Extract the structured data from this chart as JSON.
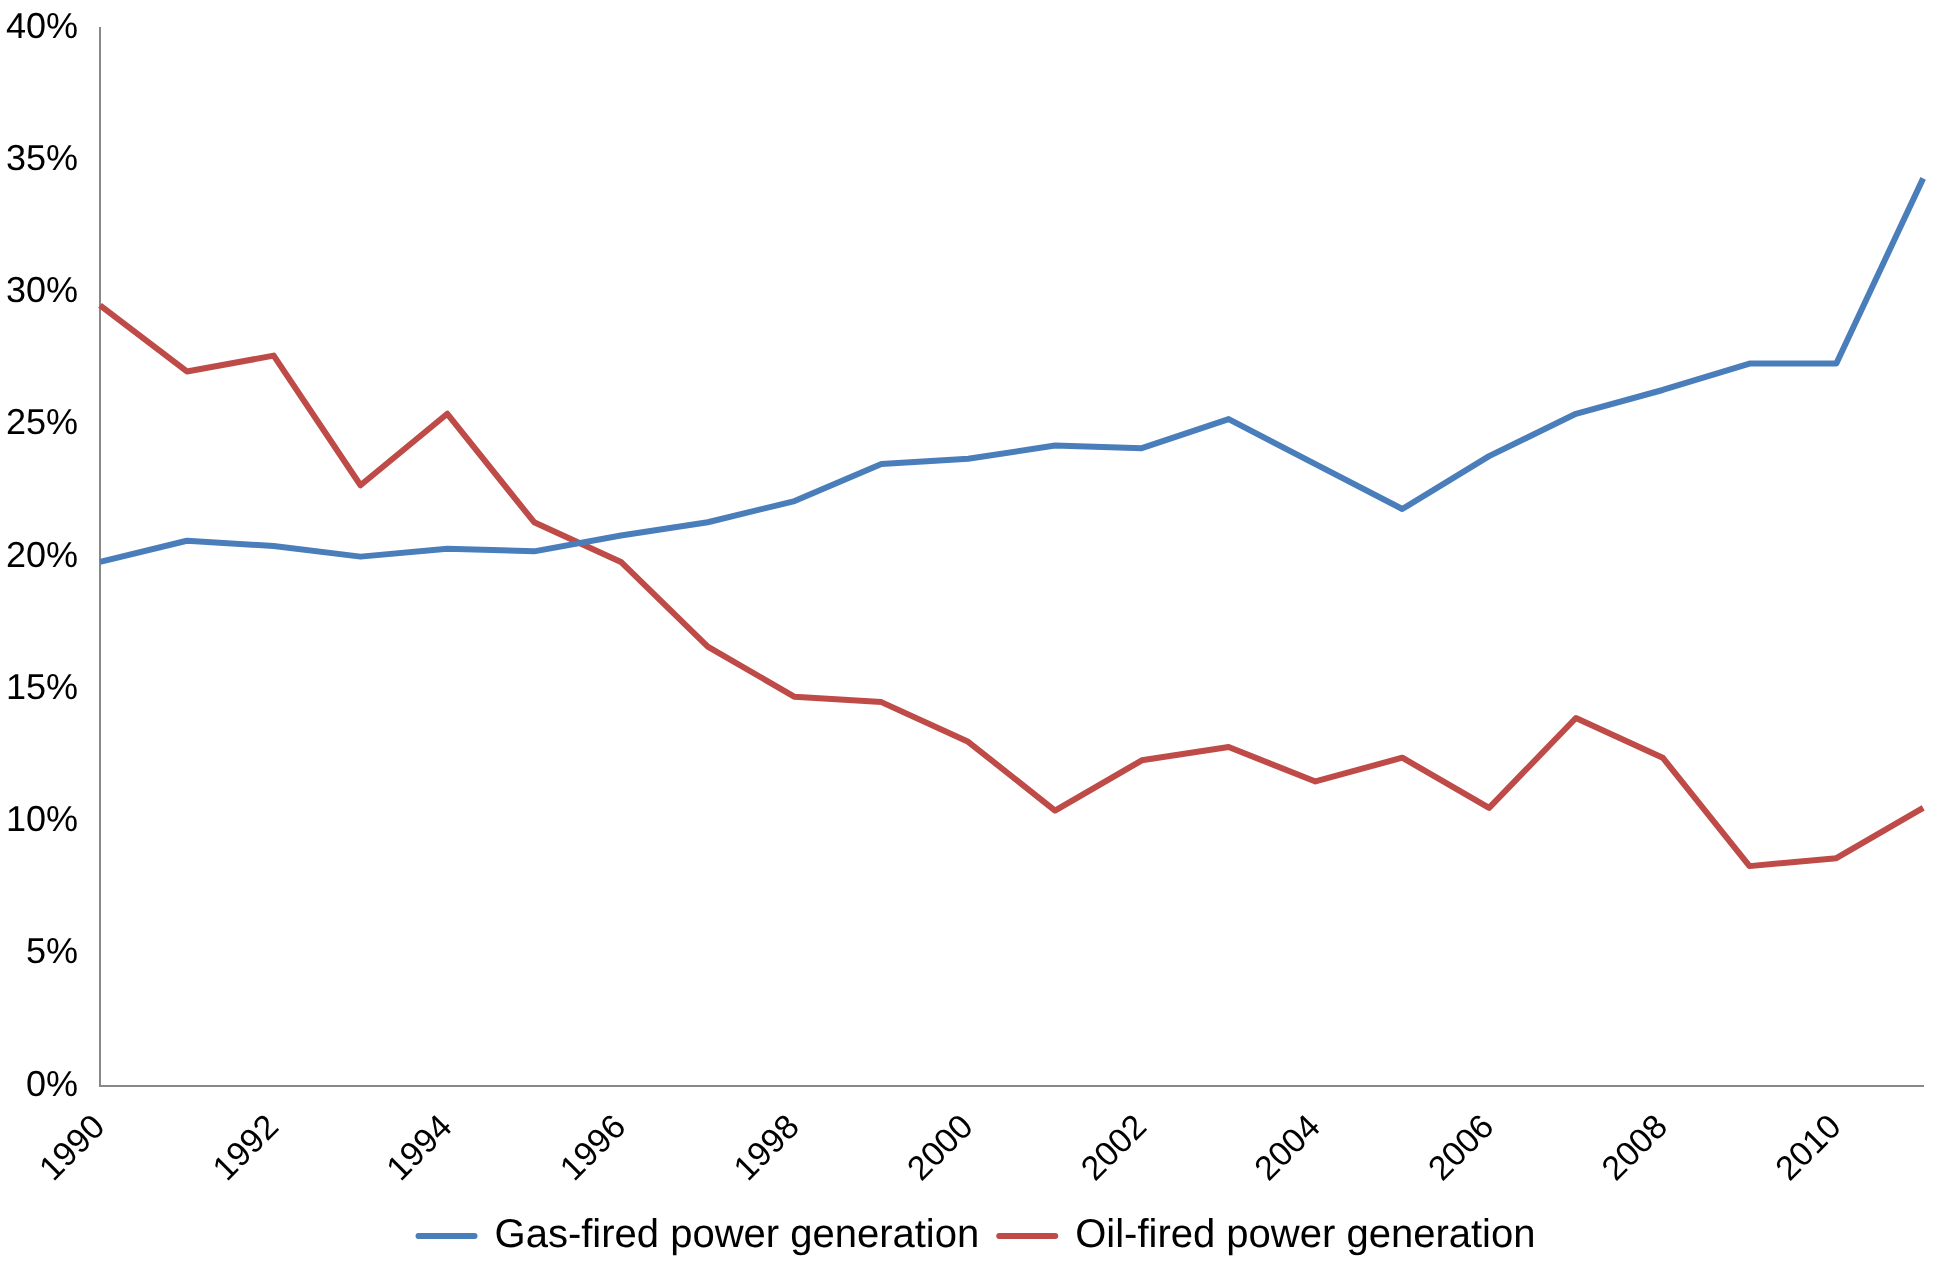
{
  "chart_data": {
    "type": "line",
    "categories": [
      "1990",
      null,
      "1992",
      null,
      "1994",
      null,
      "1996",
      null,
      "1998",
      null,
      "2000",
      null,
      "2002",
      null,
      "2004",
      null,
      "2006",
      null,
      "2008",
      null,
      "2010",
      null
    ],
    "series": [
      {
        "name": "Gas-fired power generation",
        "color": "#4a7ebb",
        "values": [
          19.8,
          20.6,
          20.4,
          20.0,
          20.3,
          20.2,
          20.8,
          21.3,
          22.1,
          23.5,
          23.7,
          24.2,
          24.1,
          25.2,
          23.5,
          21.8,
          23.8,
          25.4,
          26.3,
          27.3,
          27.3,
          34.3
        ]
      },
      {
        "name": "Oil-fired power generation",
        "color": "#be4b48",
        "values": [
          29.5,
          27.0,
          27.6,
          22.7,
          25.4,
          21.3,
          19.8,
          16.6,
          14.7,
          14.5,
          13.0,
          10.4,
          12.3,
          12.8,
          11.5,
          12.4,
          10.5,
          13.9,
          12.4,
          8.3,
          8.6,
          10.5
        ]
      }
    ],
    "ylim": [
      0,
      40
    ],
    "yticks": [
      {
        "value": 0,
        "label": "0%"
      },
      {
        "value": 5,
        "label": "5%"
      },
      {
        "value": 10,
        "label": "10%"
      },
      {
        "value": 15,
        "label": "15%"
      },
      {
        "value": 20,
        "label": "20%"
      },
      {
        "value": 25,
        "label": "25%"
      },
      {
        "value": 30,
        "label": "30%"
      },
      {
        "value": 35,
        "label": "35%"
      },
      {
        "value": 40,
        "label": "40%"
      }
    ],
    "grid": false,
    "legend": "bottom",
    "marker": "none",
    "line_style": "solid"
  }
}
